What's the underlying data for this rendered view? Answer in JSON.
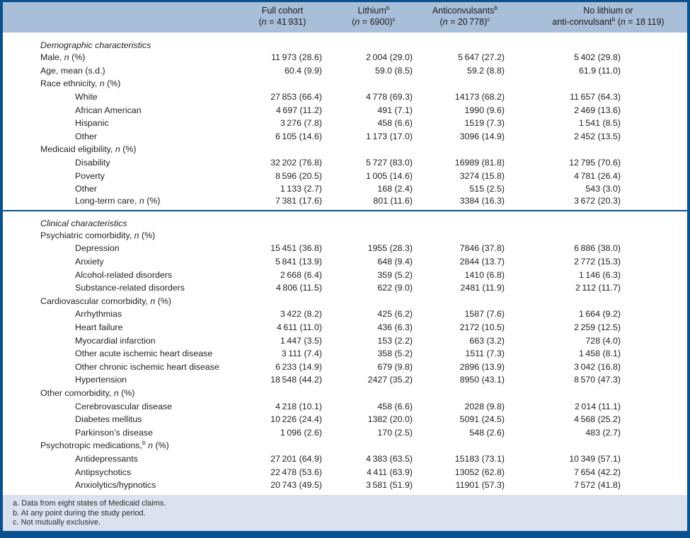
{
  "colors": {
    "accent_blue": "#0a518f",
    "header_band": "#a9bed8",
    "footnote_band": "#dbe1ee",
    "text": "#231f20"
  },
  "table": {
    "columns": [
      {
        "line1": "Full cohort",
        "line1_sup": "",
        "line2_pre": "",
        "line2_pre_sup": "",
        "n_value": "41 931",
        "line2_sup": ""
      },
      {
        "line1": "Lithium",
        "line1_sup": "b",
        "line2_pre": "",
        "line2_pre_sup": "",
        "n_value": "6900",
        "line2_sup": "c"
      },
      {
        "line1": "Anticonvulsants",
        "line1_sup": "b",
        "line2_pre": "",
        "line2_pre_sup": "",
        "n_value": "20 778",
        "line2_sup": "c"
      },
      {
        "line1": "No lithium or",
        "line1_sup": "",
        "line2_pre": "anti-convulsant",
        "line2_pre_sup": "b",
        "n_value": "18 119",
        "line2_sup": ""
      }
    ],
    "sections": [
      {
        "title": "Demographic characteristics",
        "rows": [
          {
            "label": "Male,",
            "sup": "",
            "n_pct": true,
            "indent": 0,
            "values": [
              "11 973 (28.6)",
              "2 004 (29.0)",
              "5 647 (27.2)",
              "5 402 (29.8)"
            ]
          },
          {
            "label": "Age, mean (s.d.)",
            "sup": "",
            "n_pct": false,
            "indent": 0,
            "values": [
              "60.4 (9.9)",
              "59.0 (8.5)",
              "59.2 (8.8)",
              "61.9 (11.0)"
            ]
          },
          {
            "label": "Race ethnicity,",
            "sup": "",
            "n_pct": true,
            "indent": 0,
            "values": [
              "",
              "",
              "",
              ""
            ]
          },
          {
            "label": "White",
            "sup": "",
            "n_pct": false,
            "indent": 1,
            "values": [
              "27 853 (66.4)",
              "4 778 (69.3)",
              "14173 (68.2)",
              "11 657 (64.3)"
            ]
          },
          {
            "label": "African American",
            "sup": "",
            "n_pct": false,
            "indent": 1,
            "values": [
              "4 697 (11.2)",
              "491 (7.1)",
              "1990 (9.6)",
              "2 469 (13.6)"
            ]
          },
          {
            "label": "Hispanic",
            "sup": "",
            "n_pct": false,
            "indent": 1,
            "values": [
              "3 276 (7.8)",
              "458 (6.6)",
              "1519 (7.3)",
              "1 541 (8.5)"
            ]
          },
          {
            "label": "Other",
            "sup": "",
            "n_pct": false,
            "indent": 1,
            "values": [
              "6 105 (14.6)",
              "1 173 (17.0)",
              "3096 (14.9)",
              "2 452 (13.5)"
            ]
          },
          {
            "label": "Medicaid eligibility,",
            "sup": "",
            "n_pct": true,
            "indent": 0,
            "values": [
              "",
              "",
              "",
              ""
            ]
          },
          {
            "label": "Disability",
            "sup": "",
            "n_pct": false,
            "indent": 1,
            "values": [
              "32 202 (76.8)",
              "5 727 (83.0)",
              "16989 (81.8)",
              "12 795 (70.6)"
            ]
          },
          {
            "label": "Poverty",
            "sup": "",
            "n_pct": false,
            "indent": 1,
            "values": [
              "8 596 (20.5)",
              "1 005 (14.6)",
              "3274 (15.8)",
              "4 781 (26.4)"
            ]
          },
          {
            "label": "Other",
            "sup": "",
            "n_pct": false,
            "indent": 1,
            "values": [
              "1 133 (2.7)",
              "168 (2.4)",
              "515 (2.5)",
              "543 (3.0)"
            ]
          },
          {
            "label": "Long-term care,",
            "sup": "",
            "n_pct": true,
            "indent": 1,
            "values": [
              "7 381 (17.6)",
              "801 (11.6)",
              "3384 (16.3)",
              "3 672 (20.3)"
            ]
          }
        ]
      },
      {
        "title": "Clinical characteristics",
        "rows": [
          {
            "label": "Psychiatric comorbidity,",
            "sup": "",
            "n_pct": true,
            "indent": 0,
            "values": [
              "",
              "",
              "",
              ""
            ]
          },
          {
            "label": "Depression",
            "sup": "",
            "n_pct": false,
            "indent": 1,
            "values": [
              "15 451 (36.8)",
              "1955 (28.3)",
              "7846 (37.8)",
              "6 886 (38.0)"
            ]
          },
          {
            "label": "Anxiety",
            "sup": "",
            "n_pct": false,
            "indent": 1,
            "values": [
              "5 841 (13.9)",
              "648 (9.4)",
              "2844 (13.7)",
              "2 772 (15.3)"
            ]
          },
          {
            "label": "Alcohol-related disorders",
            "sup": "",
            "n_pct": false,
            "indent": 1,
            "values": [
              "2 668 (6.4)",
              "359 (5.2)",
              "1410 (6.8)",
              "1 146 (6.3)"
            ]
          },
          {
            "label": "Substance-related disorders",
            "sup": "",
            "n_pct": false,
            "indent": 1,
            "values": [
              "4 806 (11.5)",
              "622 (9.0)",
              "2481 (11.9)",
              "2 112 (11.7)"
            ]
          },
          {
            "label": "Cardiovascular comorbidity,",
            "sup": "",
            "n_pct": true,
            "indent": 0,
            "values": [
              "",
              "",
              "",
              ""
            ]
          },
          {
            "label": "Arrhythmias",
            "sup": "",
            "n_pct": false,
            "indent": 1,
            "values": [
              "3 422 (8.2)",
              "425 (6.2)",
              "1587 (7.6)",
              "1 664 (9.2)"
            ]
          },
          {
            "label": "Heart failure",
            "sup": "",
            "n_pct": false,
            "indent": 1,
            "values": [
              "4 611 (11.0)",
              "436 (6.3)",
              "2172 (10.5)",
              "2 259 (12.5)"
            ]
          },
          {
            "label": "Myocardial infarction",
            "sup": "",
            "n_pct": false,
            "indent": 1,
            "values": [
              "1 447 (3.5)",
              "153 (2.2)",
              "663 (3.2)",
              "728 (4.0)"
            ]
          },
          {
            "label": "Other acute ischemic heart disease",
            "sup": "",
            "n_pct": false,
            "indent": 1,
            "values": [
              "3 111 (7.4)",
              "358 (5.2)",
              "1511 (7.3)",
              "1 458 (8.1)"
            ]
          },
          {
            "label": "Other chronic ischemic heart disease",
            "sup": "",
            "n_pct": false,
            "indent": 1,
            "values": [
              "6 233 (14.9)",
              "679 (9.8)",
              "2896 (13.9)",
              "3 042 (16.8)"
            ]
          },
          {
            "label": "Hypertension",
            "sup": "",
            "n_pct": false,
            "indent": 1,
            "values": [
              "18 548 (44.2)",
              "2427 (35.2)",
              "8950 (43.1)",
              "8 570 (47.3)"
            ]
          },
          {
            "label": "Other comorbidity,",
            "sup": "",
            "n_pct": true,
            "indent": 0,
            "values": [
              "",
              "",
              "",
              ""
            ]
          },
          {
            "label": "Cerebrovascular disease",
            "sup": "",
            "n_pct": false,
            "indent": 1,
            "values": [
              "4 218 (10.1)",
              "458 (6.6)",
              "2028 (9.8)",
              "2 014 (11.1)"
            ]
          },
          {
            "label": "Diabetes mellitus",
            "sup": "",
            "n_pct": false,
            "indent": 1,
            "values": [
              "10 226 (24.4)",
              "1382 (20.0)",
              "5091 (24.5)",
              "4 568 (25.2)"
            ]
          },
          {
            "label": "Parkinson’s disease",
            "sup": "",
            "n_pct": false,
            "indent": 1,
            "values": [
              "1 096 (2.6)",
              "170 (2.5)",
              "548 (2.6)",
              "483 (2.7)"
            ]
          },
          {
            "label": "Psychotropic medications,",
            "sup": "b",
            "n_pct": true,
            "indent": 0,
            "values": [
              "",
              "",
              "",
              ""
            ]
          },
          {
            "label": "Antidepressants",
            "sup": "",
            "n_pct": false,
            "indent": 1,
            "values": [
              "27 201 (64.9)",
              "4 383 (63.5)",
              "15183 (73.1)",
              "10 349 (57.1)"
            ]
          },
          {
            "label": "Antipsychotics",
            "sup": "",
            "n_pct": false,
            "indent": 1,
            "values": [
              "22 478 (53.6)",
              "4 411 (63.9)",
              "13052 (62.8)",
              "7 654 (42.2)"
            ]
          },
          {
            "label": "Anxiolytics/hypnotics",
            "sup": "",
            "n_pct": false,
            "indent": 1,
            "values": [
              "20 743 (49.5)",
              "3 581 (51.9)",
              "11901 (57.3)",
              "7 572 (41.8)"
            ]
          }
        ]
      }
    ],
    "footnotes": [
      "a. Data from eight states of Medicaid claims.",
      "b. At any point during the study period.",
      "c. Not mutually exclusive."
    ]
  }
}
